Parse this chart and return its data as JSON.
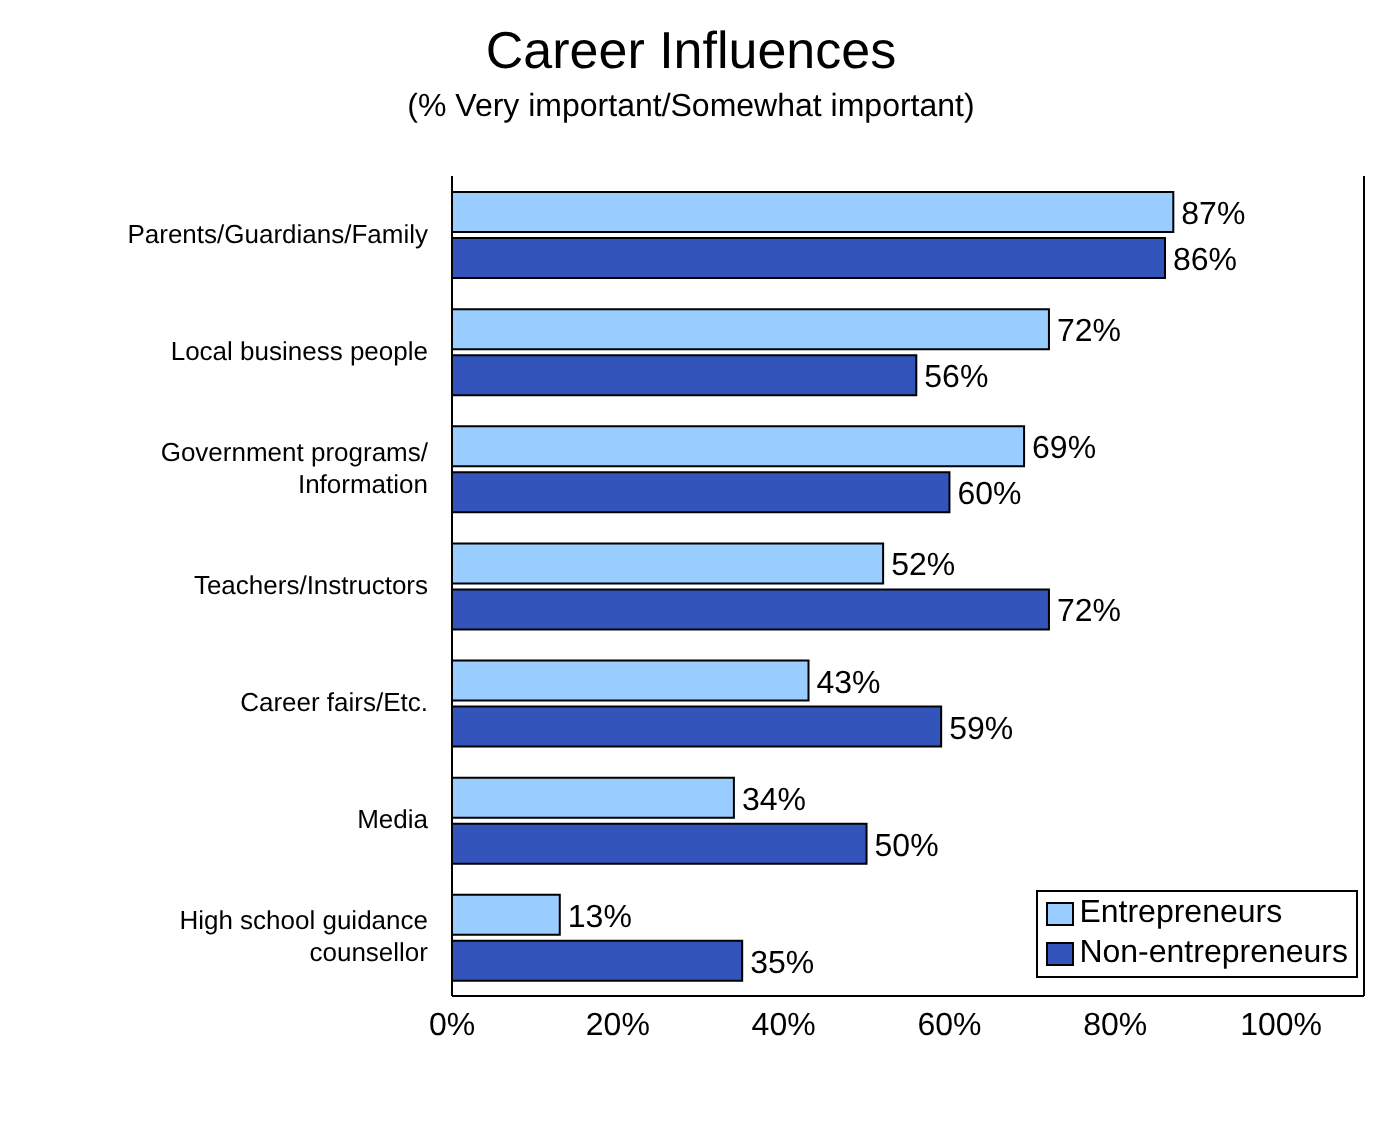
{
  "chart_data": {
    "type": "bar",
    "orientation": "horizontal",
    "title": "Career Influences",
    "subtitle": "(% Very important/Somewhat important)",
    "categories": [
      "Parents/Guardians/Family",
      "Local business people",
      "Government programs/Information",
      "Teachers/Instructors",
      "Career fairs/Etc.",
      "Media",
      "High school guidance counsellor"
    ],
    "series": [
      {
        "name": "Entrepreneurs",
        "color": "#99ccff",
        "values": [
          87,
          72,
          69,
          52,
          43,
          34,
          13
        ],
        "value_labels": [
          "87%",
          "72%",
          "69%",
          "52%",
          "43%",
          "34%",
          "13%"
        ]
      },
      {
        "name": "Non-entrepreneurs",
        "color": "#3355bb",
        "values": [
          86,
          56,
          60,
          72,
          59,
          50,
          35
        ],
        "value_labels": [
          "86%",
          "56%",
          "60%",
          "72%",
          "59%",
          "50%",
          "35%"
        ]
      }
    ],
    "xlim": [
      0,
      110
    ],
    "xticks": [
      {
        "value": 0,
        "label": "0%"
      },
      {
        "value": 20,
        "label": "20%"
      },
      {
        "value": 40,
        "label": "40%"
      },
      {
        "value": 60,
        "label": "60%"
      },
      {
        "value": 80,
        "label": "80%"
      },
      {
        "value": 100,
        "label": "100%"
      }
    ],
    "grid": false,
    "legend": "bottom right"
  }
}
